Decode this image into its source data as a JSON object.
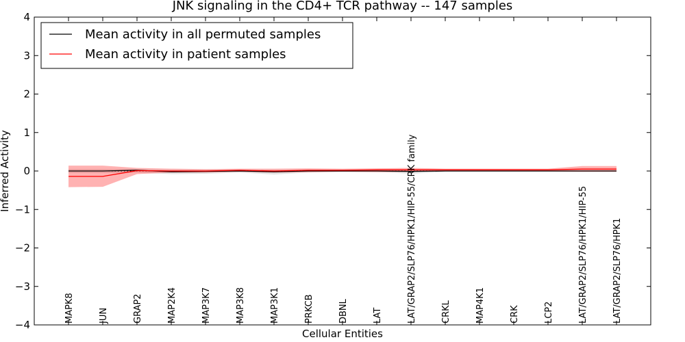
{
  "chart_data": {
    "type": "line",
    "title": "JNK signaling in the CD4+ TCR pathway -- 147 samples",
    "xlabel": "Cellular Entities",
    "ylabel": "Inferred Activity",
    "ylim": [
      -4,
      4
    ],
    "yticks": [
      -4,
      -3,
      -2,
      -1,
      0,
      1,
      2,
      3,
      4
    ],
    "ytick_labels": [
      "−4",
      "−3",
      "−2",
      "−1",
      "0",
      "1",
      "2",
      "3",
      "4"
    ],
    "reference_line": 0,
    "legend_location": "upper-left",
    "categories": [
      "MAPK8",
      "JUN",
      "GRAP2",
      "MAP2K4",
      "MAP3K7",
      "MAP3K8",
      "MAP3K1",
      "PRKCB",
      "DBNL",
      "LAT",
      "LAT/GRAP2/SLP76/HPK1/HIP-55/CRK family",
      "CRKL",
      "MAP4K1",
      "CRK",
      "LCP2",
      "LAT/GRAP2/SLP76/HPK1/HIP-55",
      "LAT/GRAP2/SLP76/HPK1"
    ],
    "series": [
      {
        "name": "Mean activity in all permuted samples",
        "color": "#000000",
        "values": [
          0.0,
          0.0,
          0.02,
          -0.02,
          -0.01,
          0.0,
          -0.02,
          0.0,
          0.0,
          0.0,
          -0.01,
          0.0,
          0.0,
          0.0,
          0.0,
          0.0,
          0.0
        ],
        "band_lower": [
          -0.05,
          -0.05,
          -0.04,
          -0.08,
          -0.07,
          -0.04,
          -0.09,
          -0.04,
          -0.02,
          -0.02,
          -0.07,
          -0.02,
          -0.02,
          -0.02,
          -0.02,
          -0.02,
          -0.02
        ],
        "band_upper": [
          0.05,
          0.05,
          0.05,
          0.03,
          0.03,
          0.03,
          0.03,
          0.03,
          0.02,
          0.02,
          0.03,
          0.02,
          0.02,
          0.02,
          0.02,
          0.02,
          0.02
        ],
        "band_color": "#c8c8c8"
      },
      {
        "name": "Mean activity in patient samples",
        "color": "#ff0000",
        "values": [
          -0.14,
          -0.14,
          0.01,
          0.0,
          0.0,
          0.02,
          0.0,
          0.02,
          0.02,
          0.03,
          0.03,
          0.03,
          0.03,
          0.03,
          0.03,
          0.05,
          0.05
        ],
        "band_lower": [
          -0.42,
          -0.41,
          -0.08,
          -0.04,
          -0.04,
          -0.02,
          -0.04,
          -0.03,
          -0.02,
          -0.03,
          -0.02,
          -0.01,
          -0.01,
          -0.01,
          -0.01,
          -0.02,
          -0.02
        ],
        "band_upper": [
          0.14,
          0.14,
          0.08,
          0.06,
          0.05,
          0.06,
          0.06,
          0.07,
          0.06,
          0.07,
          0.08,
          0.06,
          0.06,
          0.06,
          0.06,
          0.13,
          0.13
        ],
        "band_color": "#ff0000"
      }
    ]
  }
}
